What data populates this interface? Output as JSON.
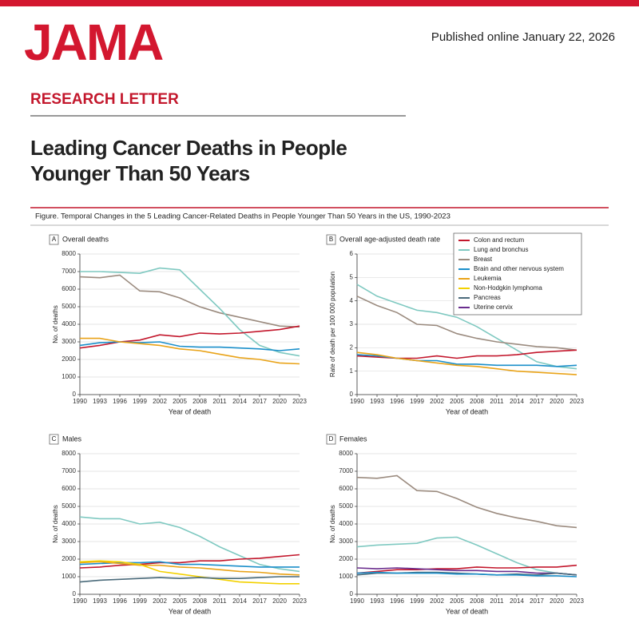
{
  "header": {
    "logo": "JAMA",
    "published": "Published online January 22, 2026",
    "section": "RESEARCH LETTER",
    "title": [
      "Leading Cancer Deaths in People",
      "Younger Than 50 Years"
    ],
    "figure_caption": "Figure. Temporal Changes in the 5 Leading Cancer-Related Deaths in People Younger Than 50 Years in the US, 1990-2023"
  },
  "chart_data": [
    {
      "type": "line",
      "panel": "A",
      "title": "Overall deaths",
      "xlabel": "Year of death",
      "ylabel": "No. of deaths",
      "x": [
        1990,
        1993,
        1996,
        1999,
        2002,
        2005,
        2008,
        2011,
        2014,
        2017,
        2020,
        2023
      ],
      "xlim": [
        1990,
        2023
      ],
      "xticks": [
        1990,
        1993,
        1996,
        1999,
        2002,
        2005,
        2008,
        2011,
        2014,
        2017,
        2020,
        2023
      ],
      "ylim": [
        0,
        8000
      ],
      "yticks": [
        0,
        1000,
        2000,
        3000,
        4000,
        5000,
        6000,
        7000,
        8000
      ],
      "grid": true,
      "series": [
        {
          "color": "#9b8b7f",
          "values": [
            6700,
            6650,
            6800,
            5900,
            5850,
            5500,
            5000,
            4650,
            4400,
            4150,
            3900,
            3850
          ]
        },
        {
          "color": "#7fc9c1",
          "values": [
            7000,
            7000,
            6950,
            6900,
            7200,
            7100,
            6000,
            4900,
            3700,
            2800,
            2400,
            2200
          ]
        },
        {
          "color": "#c3172c",
          "values": [
            2650,
            2800,
            3000,
            3100,
            3400,
            3300,
            3500,
            3450,
            3500,
            3600,
            3700,
            3900
          ]
        },
        {
          "color": "#1b8fca",
          "values": [
            2800,
            2950,
            3000,
            2950,
            3000,
            2750,
            2700,
            2700,
            2650,
            2600,
            2500,
            2600
          ]
        },
        {
          "color": "#e9a318",
          "values": [
            3200,
            3200,
            3000,
            2900,
            2800,
            2600,
            2500,
            2300,
            2100,
            2000,
            1800,
            1750
          ]
        }
      ]
    },
    {
      "type": "line",
      "panel": "B",
      "title": "Overall age-adjusted death rate",
      "xlabel": "Year of death",
      "ylabel": "Rate of death per 100 000 population",
      "x": [
        1990,
        1993,
        1996,
        1999,
        2002,
        2005,
        2008,
        2011,
        2014,
        2017,
        2020,
        2023
      ],
      "xlim": [
        1990,
        2023
      ],
      "xticks": [
        1990,
        1993,
        1996,
        1999,
        2002,
        2005,
        2008,
        2011,
        2014,
        2017,
        2020,
        2023
      ],
      "ylim": [
        0,
        6
      ],
      "yticks": [
        0,
        1,
        2,
        3,
        4,
        5,
        6
      ],
      "grid": true,
      "legend": [
        {
          "name": "Colon and rectum",
          "color": "#c3172c"
        },
        {
          "name": "Lung and bronchus",
          "color": "#7fc9c1"
        },
        {
          "name": "Breast",
          "color": "#9b8b7f"
        },
        {
          "name": "Brain and other nervous system",
          "color": "#1b8fca"
        },
        {
          "name": "Leukemia",
          "color": "#e9a318"
        },
        {
          "name": "Non-Hodgkin lymphoma",
          "color": "#f3d100"
        },
        {
          "name": "Pancreas",
          "color": "#4b6b7b"
        },
        {
          "name": "Uterine cervix",
          "color": "#6a2d8e"
        }
      ],
      "series": [
        {
          "color": "#7fc9c1",
          "values": [
            4.7,
            4.2,
            3.9,
            3.6,
            3.5,
            3.3,
            2.9,
            2.4,
            1.9,
            1.4,
            1.2,
            1.1
          ]
        },
        {
          "color": "#9b8b7f",
          "values": [
            4.2,
            3.8,
            3.5,
            3.0,
            2.95,
            2.6,
            2.4,
            2.25,
            2.15,
            2.05,
            2.0,
            1.9
          ]
        },
        {
          "color": "#c3172c",
          "values": [
            1.65,
            1.6,
            1.55,
            1.55,
            1.65,
            1.55,
            1.65,
            1.65,
            1.7,
            1.8,
            1.85,
            1.9
          ]
        },
        {
          "color": "#1b8fca",
          "values": [
            1.7,
            1.65,
            1.55,
            1.45,
            1.45,
            1.3,
            1.3,
            1.25,
            1.25,
            1.25,
            1.2,
            1.25
          ]
        },
        {
          "color": "#e9a318",
          "values": [
            1.8,
            1.7,
            1.55,
            1.45,
            1.35,
            1.25,
            1.2,
            1.1,
            1.0,
            0.95,
            0.9,
            0.85
          ]
        }
      ]
    },
    {
      "type": "line",
      "panel": "C",
      "title": "Males",
      "xlabel": "Year of death",
      "ylabel": "No. of deaths",
      "x": [
        1990,
        1993,
        1996,
        1999,
        2002,
        2005,
        2008,
        2011,
        2014,
        2017,
        2020,
        2023
      ],
      "xlim": [
        1990,
        2023
      ],
      "xticks": [
        1990,
        1993,
        1996,
        1999,
        2002,
        2005,
        2008,
        2011,
        2014,
        2017,
        2020,
        2023
      ],
      "ylim": [
        0,
        8000
      ],
      "yticks": [
        0,
        1000,
        2000,
        3000,
        4000,
        5000,
        6000,
        7000,
        8000
      ],
      "grid": true,
      "series": [
        {
          "color": "#7fc9c1",
          "values": [
            4400,
            4300,
            4300,
            4000,
            4100,
            3800,
            3300,
            2700,
            2200,
            1700,
            1450,
            1300
          ]
        },
        {
          "color": "#c3172c",
          "values": [
            1500,
            1550,
            1650,
            1700,
            1800,
            1800,
            1900,
            1900,
            2000,
            2050,
            2150,
            2250
          ]
        },
        {
          "color": "#1b8fca",
          "values": [
            1700,
            1750,
            1800,
            1800,
            1850,
            1700,
            1700,
            1650,
            1600,
            1550,
            1550,
            1550
          ]
        },
        {
          "color": "#e9a318",
          "values": [
            1800,
            1850,
            1750,
            1650,
            1650,
            1550,
            1500,
            1400,
            1300,
            1250,
            1150,
            1100
          ]
        },
        {
          "color": "#f3d100",
          "values": [
            1850,
            1900,
            1850,
            1700,
            1300,
            1150,
            1000,
            850,
            700,
            650,
            600,
            600
          ]
        },
        {
          "color": "#4b6b7b",
          "values": [
            700,
            800,
            850,
            900,
            950,
            900,
            950,
            900,
            900,
            950,
            1000,
            1000
          ]
        }
      ]
    },
    {
      "type": "line",
      "panel": "D",
      "title": "Females",
      "xlabel": "Year of death",
      "ylabel": "No. of deaths",
      "x": [
        1990,
        1993,
        1996,
        1999,
        2002,
        2005,
        2008,
        2011,
        2014,
        2017,
        2020,
        2023
      ],
      "xlim": [
        1990,
        2023
      ],
      "xticks": [
        1990,
        1993,
        1996,
        1999,
        2002,
        2005,
        2008,
        2011,
        2014,
        2017,
        2020,
        2023
      ],
      "ylim": [
        0,
        8000
      ],
      "yticks": [
        0,
        1000,
        2000,
        3000,
        4000,
        5000,
        6000,
        7000,
        8000
      ],
      "grid": true,
      "series": [
        {
          "color": "#9b8b7f",
          "values": [
            6650,
            6600,
            6750,
            5900,
            5850,
            5450,
            4950,
            4600,
            4350,
            4150,
            3900,
            3800
          ]
        },
        {
          "color": "#7fc9c1",
          "values": [
            2700,
            2800,
            2850,
            2900,
            3200,
            3250,
            2800,
            2300,
            1800,
            1400,
            1200,
            1100
          ]
        },
        {
          "color": "#c3172c",
          "values": [
            1200,
            1300,
            1400,
            1400,
            1450,
            1450,
            1550,
            1500,
            1500,
            1550,
            1550,
            1650
          ]
        },
        {
          "color": "#6a2d8e",
          "values": [
            1500,
            1450,
            1500,
            1450,
            1400,
            1350,
            1350,
            1300,
            1300,
            1200,
            1200,
            1100
          ]
        },
        {
          "color": "#4b6b7b",
          "values": [
            1100,
            1200,
            1200,
            1250,
            1250,
            1200,
            1150,
            1100,
            1150,
            1100,
            1200,
            1100
          ]
        },
        {
          "color": "#1b8fca",
          "values": [
            1200,
            1250,
            1200,
            1200,
            1200,
            1150,
            1150,
            1100,
            1100,
            1050,
            1050,
            1000
          ]
        }
      ]
    }
  ]
}
